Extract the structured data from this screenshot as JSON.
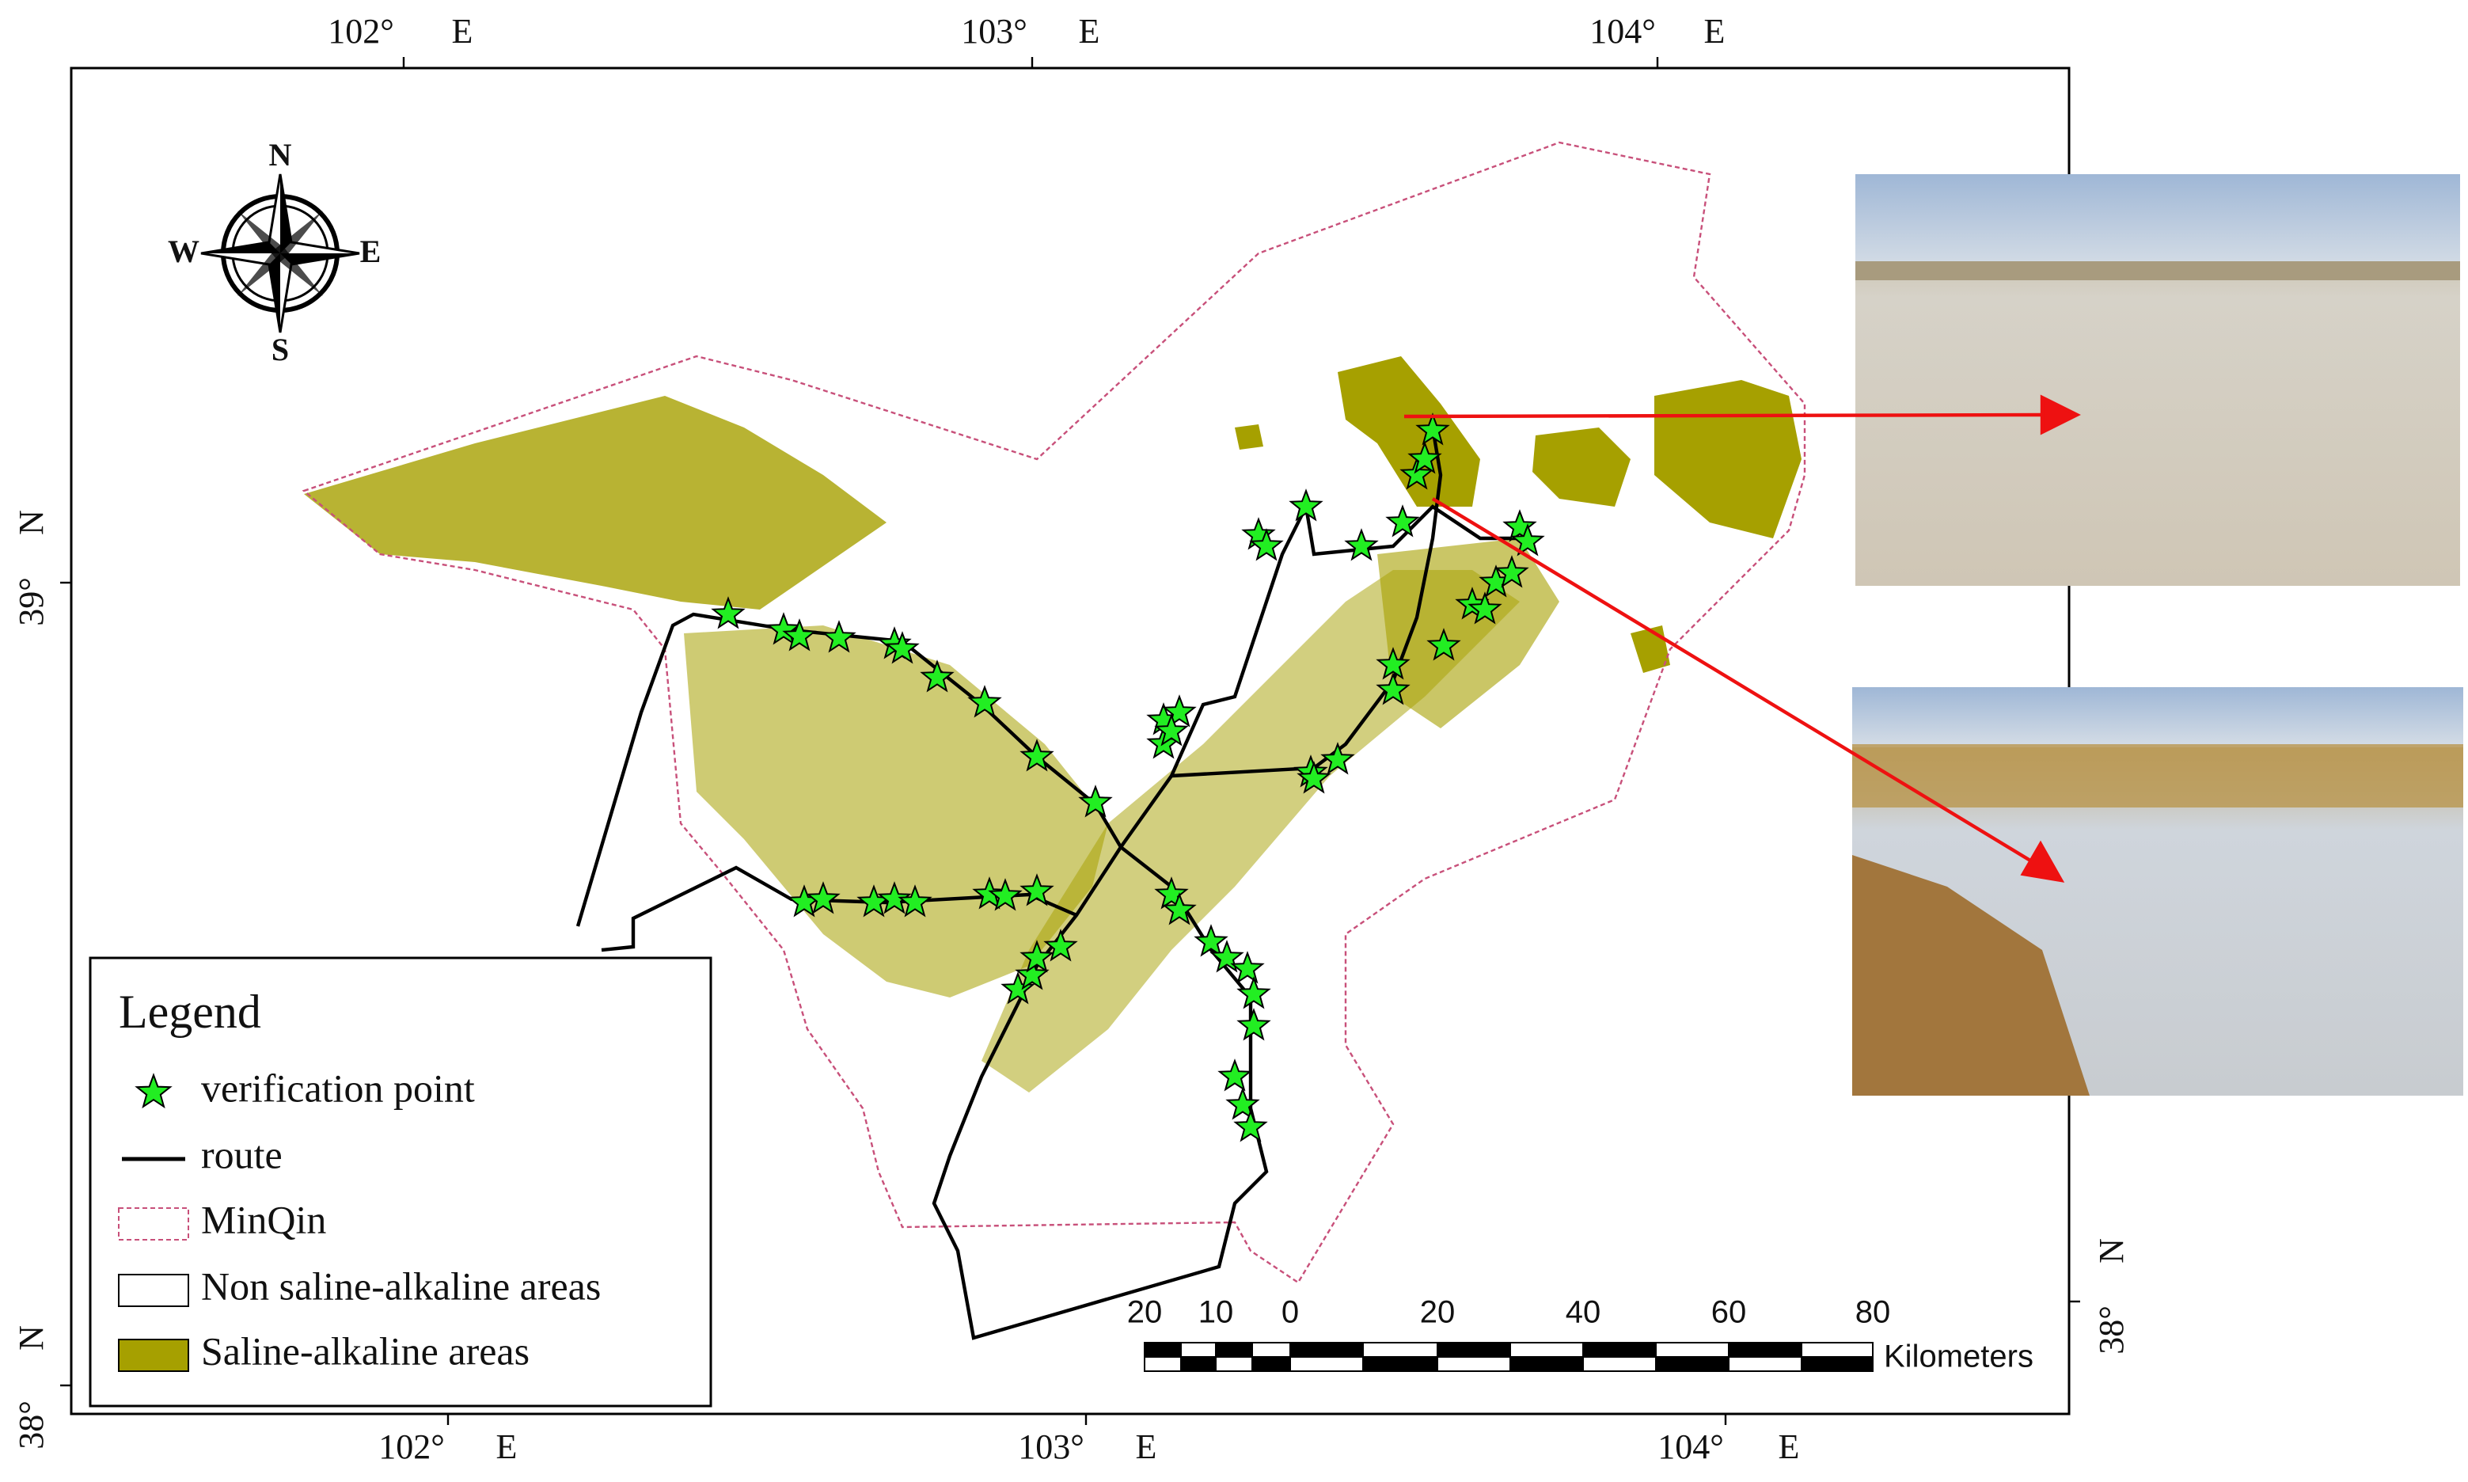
{
  "graticule": {
    "top": [
      {
        "deg": "102°",
        "hem": "E"
      },
      {
        "deg": "103°",
        "hem": "E"
      },
      {
        "deg": "104°",
        "hem": "E"
      }
    ],
    "bottom": [
      {
        "deg": "102°",
        "hem": "E"
      },
      {
        "deg": "103°",
        "hem": "E"
      },
      {
        "deg": "104°",
        "hem": "E"
      }
    ],
    "left": [
      {
        "deg": "39°",
        "hem": "N"
      },
      {
        "deg": "38°",
        "hem": "N"
      }
    ],
    "right": [
      {
        "deg": "38°",
        "hem": "N"
      }
    ]
  },
  "compass": {
    "n": "N",
    "s": "S",
    "w": "W",
    "e": "E"
  },
  "legend": {
    "title": "Legend",
    "items": [
      "verification point",
      "route",
      "MinQin",
      "Non saline-alkaline areas",
      "Saline-alkaline areas"
    ]
  },
  "scale_bar": {
    "labels": [
      "20",
      "10",
      "0",
      "20",
      "40",
      "60",
      "80"
    ],
    "unit": "Kilometers"
  }
}
